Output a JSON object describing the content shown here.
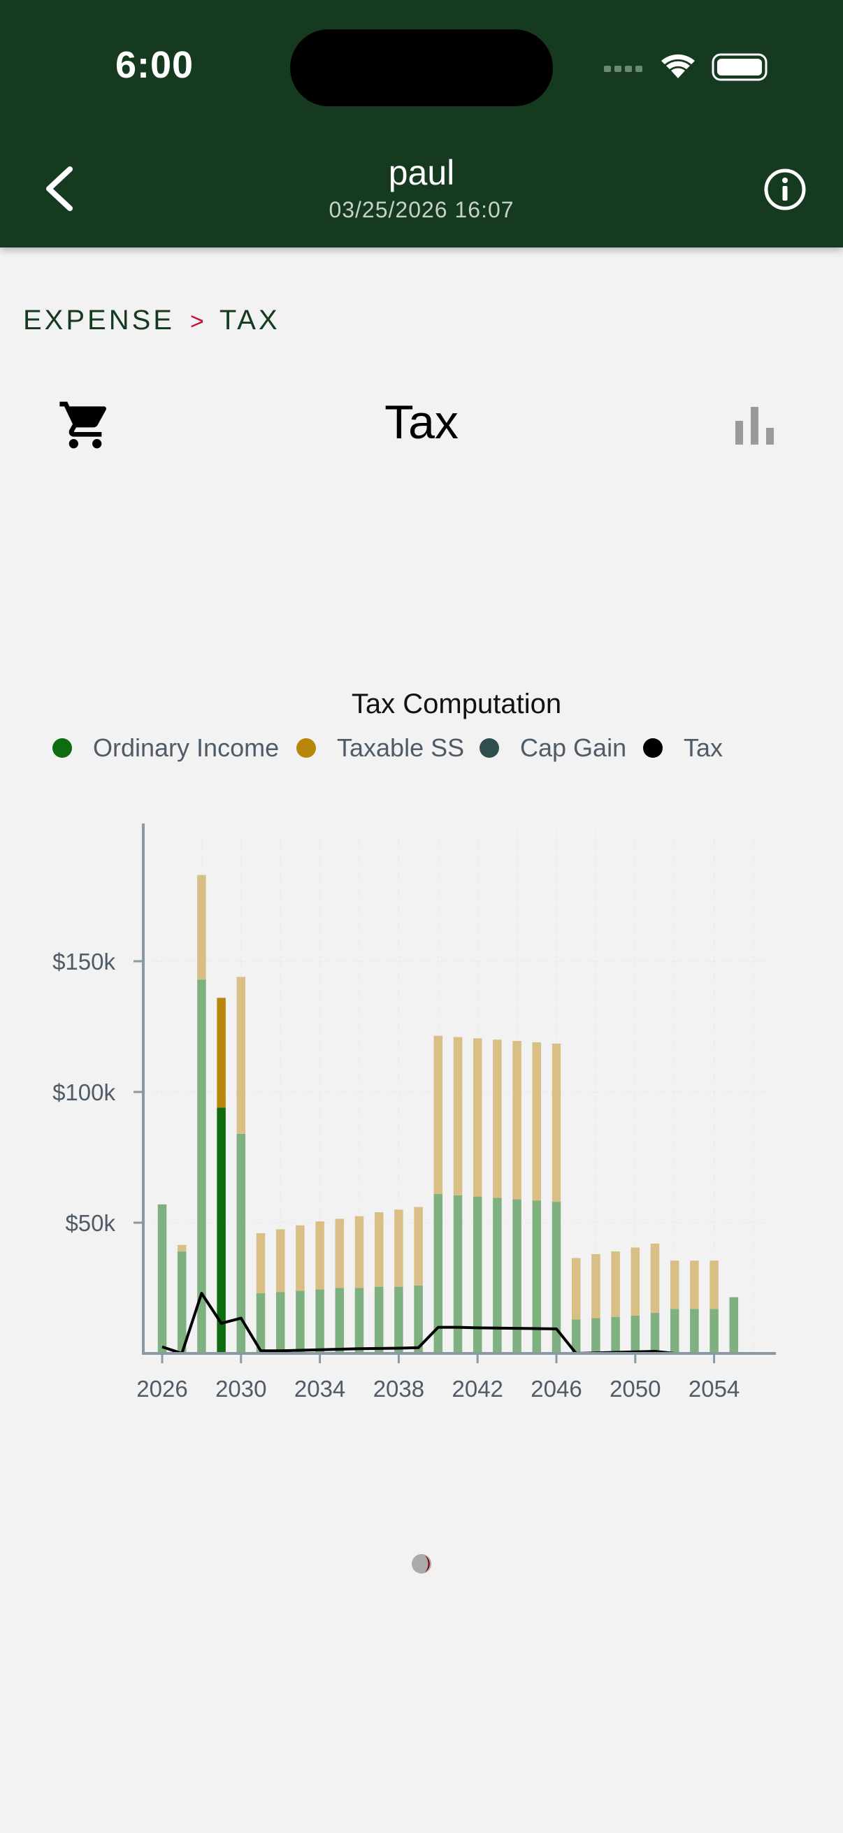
{
  "status": {
    "time": "6:00"
  },
  "header": {
    "title": "paul",
    "subtitle": "03/25/2026 16:07"
  },
  "breadcrumb": {
    "parent": "EXPENSE",
    "separator": ">",
    "current": "TAX"
  },
  "page": {
    "title": "Tax"
  },
  "icons": {
    "back": "chevron-left-icon",
    "info": "info-icon",
    "cart": "cart-icon",
    "chart_toggle": "bar-chart-icon"
  },
  "colors": {
    "header_bg": "#153a20",
    "ordinary_income": "#0f6b0f",
    "taxable_ss": "#b8860b",
    "cap_gain": "#2f4f4f",
    "tax": "#000000",
    "ordinary_income_faded": "#7fb07f",
    "taxable_ss_faded": "#d9bf85"
  },
  "chart_data": {
    "type": "bar",
    "title": "Tax Computation",
    "stacked": true,
    "legend": [
      "Ordinary Income",
      "Taxable SS",
      "Cap Gain",
      "Tax"
    ],
    "legend_position": "top",
    "x": [
      2026,
      2027,
      2028,
      2029,
      2030,
      2031,
      2032,
      2033,
      2034,
      2035,
      2036,
      2037,
      2038,
      2039,
      2040,
      2041,
      2042,
      2043,
      2044,
      2045,
      2046,
      2047,
      2048,
      2049,
      2050,
      2051,
      2052,
      2053,
      2054,
      2055
    ],
    "x_ticks": [
      "2026",
      "2030",
      "2034",
      "2038",
      "2042",
      "2046",
      "2050",
      "2054"
    ],
    "y_ticks": [
      "$50k",
      "$100k",
      "$150k"
    ],
    "ylim": [
      0,
      200000
    ],
    "highlighted_x": 2029,
    "series": [
      {
        "name": "Ordinary Income",
        "kind": "bar",
        "values": [
          57000,
          39000,
          143000,
          94000,
          84000,
          23000,
          23500,
          24000,
          24500,
          25000,
          25000,
          25500,
          25500,
          26000,
          61000,
          60500,
          60000,
          59500,
          59000,
          58500,
          58000,
          13000,
          13500,
          14000,
          14500,
          15500,
          17000,
          17000,
          17000,
          21500
        ]
      },
      {
        "name": "Taxable SS",
        "kind": "bar",
        "values": [
          0,
          2500,
          40000,
          42000,
          60000,
          23000,
          24000,
          25000,
          26000,
          26500,
          27500,
          28500,
          29500,
          30000,
          60500,
          60500,
          60500,
          60500,
          60500,
          60500,
          60500,
          23500,
          24500,
          25000,
          26000,
          26500,
          18500,
          18500,
          18500,
          0
        ]
      },
      {
        "name": "Cap Gain",
        "kind": "bar",
        "values": [
          0,
          0,
          0,
          0,
          0,
          0,
          0,
          0,
          0,
          0,
          0,
          0,
          0,
          0,
          0,
          0,
          0,
          0,
          0,
          0,
          0,
          0,
          0,
          0,
          0,
          0,
          0,
          0,
          0,
          0
        ]
      },
      {
        "name": "Tax",
        "kind": "line",
        "values": [
          2500,
          0,
          23000,
          11500,
          13500,
          1000,
          1000,
          1200,
          1400,
          1600,
          1800,
          1900,
          2000,
          2200,
          10000,
          10000,
          9800,
          9700,
          9600,
          9500,
          9400,
          0,
          200,
          400,
          600,
          800,
          0,
          0,
          0,
          0
        ]
      }
    ]
  }
}
